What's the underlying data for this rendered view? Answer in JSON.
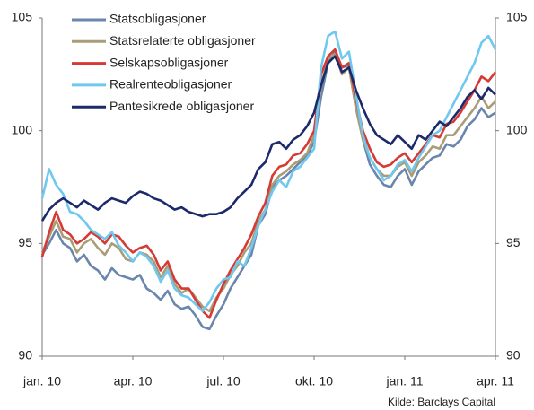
{
  "chart_data": {
    "type": "line",
    "categories": [
      "jan. 10",
      null,
      null,
      null,
      null,
      null,
      null,
      null,
      null,
      null,
      null,
      null,
      null,
      "apr. 10",
      null,
      null,
      null,
      null,
      null,
      null,
      null,
      null,
      null,
      null,
      null,
      null,
      "jul. 10",
      null,
      null,
      null,
      null,
      null,
      null,
      null,
      null,
      null,
      null,
      null,
      null,
      "okt. 10",
      null,
      null,
      null,
      null,
      null,
      null,
      null,
      null,
      null,
      null,
      null,
      null,
      "jan. 11",
      null,
      null,
      null,
      null,
      null,
      null,
      null,
      null,
      null,
      null,
      null,
      null,
      "apr. 11"
    ],
    "series": [
      {
        "name": "Statsobligasjoner",
        "color": "#6a86ad",
        "values": [
          94.5,
          95.0,
          95.6,
          95.0,
          94.8,
          94.2,
          94.5,
          94.0,
          93.8,
          93.4,
          93.9,
          93.6,
          93.5,
          93.4,
          93.6,
          93.0,
          92.8,
          92.5,
          92.9,
          92.3,
          92.1,
          92.2,
          91.8,
          91.3,
          91.2,
          91.8,
          92.3,
          93.0,
          93.5,
          94.0,
          94.5,
          95.8,
          96.3,
          97.5,
          97.8,
          98.0,
          98.3,
          98.6,
          98.9,
          99.5,
          101.5,
          103.0,
          103.5,
          102.8,
          102.9,
          101.0,
          99.6,
          98.5,
          98.0,
          97.6,
          97.5,
          98.0,
          98.3,
          97.6,
          98.2,
          98.5,
          98.8,
          98.9,
          99.4,
          99.3,
          99.6,
          100.2,
          100.5,
          101.0,
          100.6,
          100.8
        ]
      },
      {
        "name": "Statsrelaterte obligasjoner",
        "color": "#a99d77",
        "values": [
          94.6,
          95.3,
          96.0,
          95.3,
          95.2,
          94.6,
          95.0,
          95.2,
          94.8,
          94.5,
          95.0,
          94.8,
          94.3,
          94.2,
          94.6,
          94.5,
          94.2,
          93.5,
          94.0,
          93.2,
          92.8,
          93.0,
          92.6,
          92.2,
          92.0,
          92.6,
          93.0,
          93.6,
          94.0,
          94.6,
          95.0,
          96.0,
          96.5,
          97.6,
          98.0,
          98.2,
          98.5,
          98.7,
          99.0,
          99.8,
          102.0,
          103.2,
          103.4,
          102.5,
          102.8,
          101.0,
          99.6,
          98.8,
          98.3,
          98.0,
          98.0,
          98.4,
          98.6,
          98.0,
          98.6,
          98.9,
          99.3,
          99.2,
          99.8,
          99.8,
          100.2,
          100.6,
          101.0,
          101.5,
          101.0,
          101.3
        ]
      },
      {
        "name": "Selskapsobligasjoner",
        "color": "#d63a35",
        "values": [
          94.4,
          95.5,
          96.4,
          95.6,
          95.4,
          95.0,
          95.2,
          95.5,
          95.3,
          95.0,
          95.4,
          95.3,
          94.9,
          94.6,
          94.8,
          94.9,
          94.5,
          93.8,
          94.2,
          93.4,
          93.0,
          93.0,
          92.5,
          92.0,
          91.7,
          92.5,
          93.2,
          93.8,
          94.3,
          94.8,
          95.4,
          96.2,
          96.8,
          98.0,
          98.4,
          98.5,
          98.9,
          99.0,
          99.4,
          100.0,
          102.5,
          103.3,
          103.6,
          102.8,
          103.0,
          101.4,
          100.0,
          99.2,
          98.6,
          98.4,
          98.5,
          98.8,
          99.0,
          98.6,
          99.0,
          99.4,
          99.8,
          99.7,
          100.3,
          100.4,
          100.8,
          101.3,
          101.8,
          102.4,
          102.2,
          102.6
        ]
      },
      {
        "name": "Realrenteobligasjoner",
        "color": "#6fc8ef",
        "values": [
          97.0,
          98.3,
          97.6,
          97.2,
          96.4,
          96.3,
          96.0,
          95.6,
          95.4,
          95.2,
          95.5,
          94.9,
          94.6,
          94.2,
          94.6,
          94.4,
          94.0,
          93.3,
          93.8,
          93.0,
          92.7,
          92.6,
          92.3,
          92.0,
          92.4,
          93.0,
          93.4,
          93.5,
          94.2,
          94.0,
          94.8,
          95.8,
          96.5,
          97.3,
          97.8,
          97.5,
          98.2,
          98.4,
          98.8,
          99.2,
          102.8,
          104.2,
          104.4,
          103.2,
          103.5,
          101.6,
          99.8,
          98.8,
          98.3,
          97.8,
          98.0,
          98.5,
          98.7,
          98.2,
          98.8,
          99.3,
          99.8,
          100.0,
          100.6,
          101.2,
          101.8,
          102.4,
          103.0,
          103.9,
          104.2,
          103.6
        ]
      },
      {
        "name": "Pantesikrede obligasjoner",
        "color": "#1c2a6b",
        "values": [
          96.0,
          96.5,
          96.8,
          97.0,
          96.8,
          96.6,
          96.9,
          96.7,
          96.5,
          96.8,
          97.0,
          96.9,
          96.8,
          97.1,
          97.3,
          97.2,
          97.0,
          96.9,
          96.7,
          96.5,
          96.6,
          96.4,
          96.3,
          96.2,
          96.3,
          96.3,
          96.4,
          96.6,
          97.0,
          97.3,
          97.6,
          98.3,
          98.6,
          99.4,
          99.5,
          99.2,
          99.6,
          99.8,
          100.2,
          100.8,
          102.0,
          103.0,
          103.3,
          102.6,
          102.8,
          101.8,
          101.0,
          100.3,
          99.8,
          99.6,
          99.4,
          99.8,
          99.5,
          99.2,
          99.8,
          99.6,
          100.0,
          100.4,
          100.2,
          100.6,
          101.0,
          101.5,
          101.8,
          101.4,
          101.9,
          101.6
        ]
      }
    ],
    "ylim": [
      90,
      105
    ],
    "yticks": [
      90,
      95,
      100,
      105
    ],
    "y2lim": [
      90,
      105
    ],
    "y2ticks": [
      90,
      95,
      100,
      105
    ],
    "legend": "upper left",
    "source": "Kilde: Barclays Capital"
  }
}
